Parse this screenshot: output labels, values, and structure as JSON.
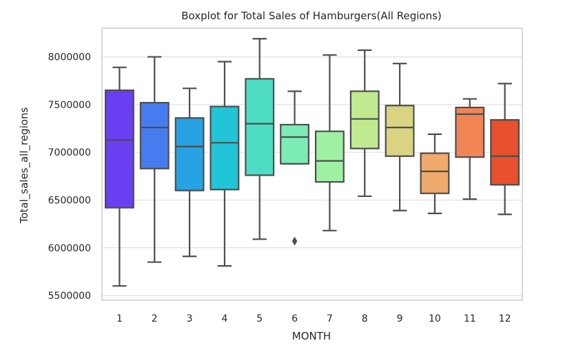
{
  "chart_data": {
    "type": "boxplot",
    "title": "Boxplot for Total Sales of Hamburgers(All Regions)",
    "xlabel": "MONTH",
    "ylabel": "Total_sales_all_regions",
    "categories": [
      "1",
      "2",
      "3",
      "4",
      "5",
      "6",
      "7",
      "8",
      "9",
      "10",
      "11",
      "12"
    ],
    "ylim": [
      5450000,
      8300000
    ],
    "yticks": [
      5500000,
      6000000,
      6500000,
      7000000,
      7500000,
      8000000
    ],
    "ytick_labels": [
      "5500000",
      "6000000",
      "6500000",
      "7000000",
      "7500000",
      "8000000"
    ],
    "grid": true,
    "boxes": [
      {
        "category": "1",
        "whislo": 5600000,
        "q1": 6420000,
        "med": 7130000,
        "q3": 7650000,
        "whishi": 7890000,
        "fliers": [],
        "color": "#6a3ff2"
      },
      {
        "category": "2",
        "whislo": 5850000,
        "q1": 6830000,
        "med": 7260000,
        "q3": 7520000,
        "whishi": 8000000,
        "fliers": [],
        "color": "#467cf0"
      },
      {
        "category": "3",
        "whislo": 5910000,
        "q1": 6600000,
        "med": 7060000,
        "q3": 7360000,
        "whishi": 7670000,
        "fliers": [],
        "color": "#27a2e4"
      },
      {
        "category": "4",
        "whislo": 5810000,
        "q1": 6610000,
        "med": 7100000,
        "q3": 7480000,
        "whishi": 7950000,
        "fliers": [],
        "color": "#22c4d8"
      },
      {
        "category": "5",
        "whislo": 6090000,
        "q1": 6760000,
        "med": 7300000,
        "q3": 7770000,
        "whishi": 8190000,
        "fliers": [],
        "color": "#4fdcc4"
      },
      {
        "category": "6",
        "whislo": 6880000,
        "q1": 6880000,
        "med": 7160000,
        "q3": 7290000,
        "whishi": 7640000,
        "fliers": [
          6070000
        ],
        "color": "#7cebb6"
      },
      {
        "category": "7",
        "whislo": 6180000,
        "q1": 6690000,
        "med": 6910000,
        "q3": 7220000,
        "whishi": 8020000,
        "fliers": [],
        "color": "#a0f0a4"
      },
      {
        "category": "8",
        "whislo": 6540000,
        "q1": 7040000,
        "med": 7350000,
        "q3": 7640000,
        "whishi": 8070000,
        "fliers": [],
        "color": "#c0ea90"
      },
      {
        "category": "9",
        "whislo": 6390000,
        "q1": 6960000,
        "med": 7260000,
        "q3": 7490000,
        "whishi": 7930000,
        "fliers": [],
        "color": "#d9d382"
      },
      {
        "category": "10",
        "whislo": 6360000,
        "q1": 6570000,
        "med": 6800000,
        "q3": 6990000,
        "whishi": 7190000,
        "fliers": [],
        "color": "#f0aa6c"
      },
      {
        "category": "11",
        "whislo": 6510000,
        "q1": 6950000,
        "med": 7400000,
        "q3": 7470000,
        "whishi": 7560000,
        "fliers": [],
        "color": "#f28555"
      },
      {
        "category": "12",
        "whislo": 6350000,
        "q1": 6660000,
        "med": 6960000,
        "q3": 7340000,
        "whishi": 7720000,
        "fliers": [],
        "color": "#e8502e"
      }
    ]
  }
}
